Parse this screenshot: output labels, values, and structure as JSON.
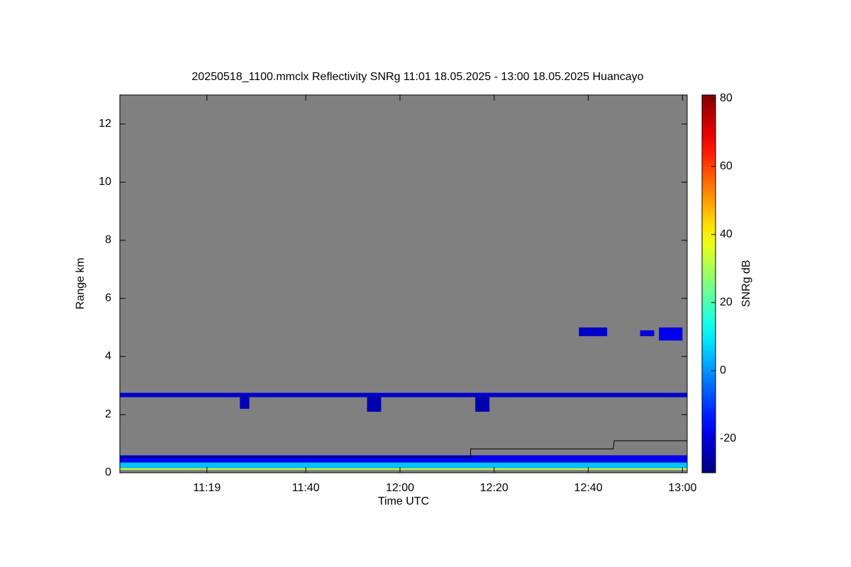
{
  "chart_data": {
    "type": "heatmap",
    "title": "20250518_1100.mmclx Reflectivity SNRg   11:01 18.05.2025 - 13:00 18.05.2025 Huancayo",
    "x_label": "Time UTC",
    "y_label": "Range km",
    "colorbar_label": "SNRg dB",
    "background": "#808080",
    "xlim": [
      660.5,
      781
    ],
    "xticks": [
      {
        "value": 679,
        "label": "11:19"
      },
      {
        "value": 700,
        "label": "11:40"
      },
      {
        "value": 720,
        "label": "12:00"
      },
      {
        "value": 740,
        "label": "12:20"
      },
      {
        "value": 760,
        "label": "12:40"
      },
      {
        "value": 780,
        "label": "13:00"
      }
    ],
    "ylim": [
      0,
      13
    ],
    "yticks": [
      0,
      2,
      4,
      6,
      8,
      10,
      12
    ],
    "clim": [
      -30,
      81
    ],
    "cticks": [
      -20,
      0,
      20,
      40,
      60,
      80
    ],
    "colormap": "jet",
    "cells": [
      {
        "t0": 660.5,
        "t1": 781,
        "r0": 0.35,
        "r1": 0.6,
        "snr": -18
      },
      {
        "t0": 660.5,
        "t1": 781,
        "r0": 0.15,
        "r1": 0.35,
        "snr": 5
      },
      {
        "t0": 660.5,
        "t1": 781,
        "r0": 0.1,
        "r1": 0.15,
        "snr": 35
      },
      {
        "t0": 660.5,
        "t1": 781,
        "r0": 2.6,
        "r1": 2.75,
        "snr": -22
      },
      {
        "t0": 686,
        "t1": 688,
        "r0": 2.2,
        "r1": 2.6,
        "snr": -24
      },
      {
        "t0": 713,
        "t1": 716,
        "r0": 2.1,
        "r1": 2.6,
        "snr": -25
      },
      {
        "t0": 736,
        "t1": 739,
        "r0": 2.1,
        "r1": 2.6,
        "snr": -25
      },
      {
        "t0": 758,
        "t1": 764,
        "r0": 4.7,
        "r1": 5.0,
        "snr": -22
      },
      {
        "t0": 771,
        "t1": 774,
        "r0": 4.7,
        "r1": 4.9,
        "snr": -20
      },
      {
        "t0": 775,
        "t1": 780,
        "r0": 4.55,
        "r1": 5.0,
        "snr": -18
      }
    ],
    "series": [
      {
        "color": "#000000",
        "x": [
          660.5,
          735,
          735,
          765.3,
          765.5,
          781
        ],
        "values": [
          0.54,
          0.54,
          0.82,
          0.82,
          1.1,
          1.1
        ]
      }
    ]
  }
}
